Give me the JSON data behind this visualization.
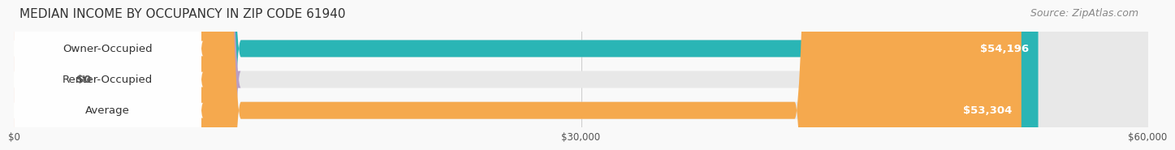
{
  "title": "MEDIAN INCOME BY OCCUPANCY IN ZIP CODE 61940",
  "source": "Source: ZipAtlas.com",
  "categories": [
    "Owner-Occupied",
    "Renter-Occupied",
    "Average"
  ],
  "values": [
    54196,
    0,
    53304
  ],
  "display_labels": [
    "$54,196",
    "$0",
    "$53,304"
  ],
  "bar_colors": [
    "#2ab5b5",
    "#b89ec4",
    "#f5a94e"
  ],
  "bar_bg_color": "#efefef",
  "xlim": [
    0,
    60000
  ],
  "xticks": [
    0,
    30000,
    60000
  ],
  "xtick_labels": [
    "$0",
    "$30,000",
    "$60,000"
  ],
  "title_fontsize": 11,
  "source_fontsize": 9,
  "label_fontsize": 9.5,
  "bar_height": 0.55,
  "fig_bg_color": "#f9f9f9"
}
